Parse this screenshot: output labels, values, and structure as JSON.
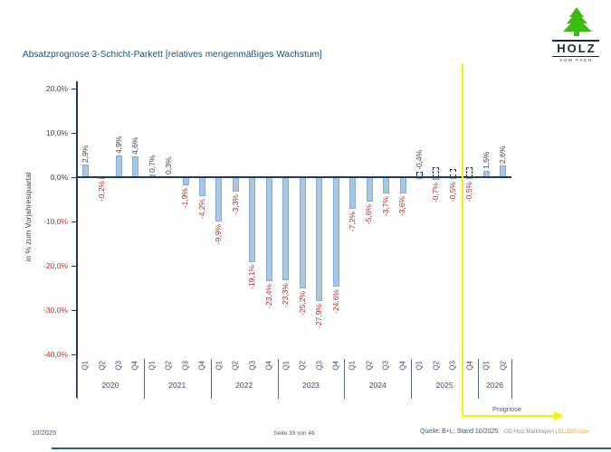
{
  "page": {
    "title": "Absatzprognose 3-Schicht-Parkett [relatives mengenmäßiges Wachstum]",
    "logo": {
      "name": "HOLZ",
      "subtitle": "VOM FACH",
      "tree_icon": "fir-tree-icon",
      "green": "#3EBB13",
      "dark": "#1D2A36"
    },
    "footer": {
      "left": "10/2025",
      "center": "Seite 39 von 46",
      "source": "Quelle: B+L; Stand 10/2025",
      "brand": "GD Holz Marktreport | ",
      "brand_link": "BL2020.com"
    }
  },
  "chart_data": {
    "type": "bar",
    "title": "Absatzprognose 3-Schicht-Parkett [relatives mengenmäßiges Wachstum]",
    "xlabel": "",
    "ylabel": "in % zum Vorjahresquartal",
    "ylim": [
      -40,
      20
    ],
    "grid": false,
    "legend": false,
    "yticks": [
      {
        "value": 20,
        "label": "20,0%"
      },
      {
        "value": 10,
        "label": "10,0%"
      },
      {
        "value": 0,
        "label": "0,0%"
      },
      {
        "value": -10,
        "label": "-10,0%"
      },
      {
        "value": -20,
        "label": "-20,0%"
      },
      {
        "value": -30,
        "label": "-30,0%"
      },
      {
        "value": -40,
        "label": "-40,0%"
      }
    ],
    "years": [
      {
        "label": "2020",
        "quarters": 4
      },
      {
        "label": "2021",
        "quarters": 4
      },
      {
        "label": "2022",
        "quarters": 4
      },
      {
        "label": "2023",
        "quarters": 4
      },
      {
        "label": "2024",
        "quarters": 4
      },
      {
        "label": "2025",
        "quarters": 4
      },
      {
        "label": "2026",
        "quarters": 2
      }
    ],
    "points": [
      {
        "year": "2020",
        "q": "Q1",
        "value": 2.9,
        "label": "2,9%"
      },
      {
        "year": "2020",
        "q": "Q2",
        "value": -0.2,
        "label": "-0,2%"
      },
      {
        "year": "2020",
        "q": "Q3",
        "value": 4.9,
        "label": "4,9%"
      },
      {
        "year": "2020",
        "q": "Q4",
        "value": 4.6,
        "label": "4,6%"
      },
      {
        "year": "2021",
        "q": "Q1",
        "value": 0.7,
        "label": "0,7%"
      },
      {
        "year": "2021",
        "q": "Q2",
        "value": 0.3,
        "label": "0,3%"
      },
      {
        "year": "2021",
        "q": "Q3",
        "value": -1.9,
        "label": "-1,9%"
      },
      {
        "year": "2021",
        "q": "Q4",
        "value": -4.2,
        "label": "-4,2%"
      },
      {
        "year": "2022",
        "q": "Q1",
        "value": -9.9,
        "label": "-9,9%"
      },
      {
        "year": "2022",
        "q": "Q2",
        "value": -3.3,
        "label": "-3,3%"
      },
      {
        "year": "2022",
        "q": "Q3",
        "value": -19.1,
        "label": "-19,1%"
      },
      {
        "year": "2022",
        "q": "Q4",
        "value": -23.4,
        "label": "-23,4%"
      },
      {
        "year": "2023",
        "q": "Q1",
        "value": -23.3,
        "label": "-23,3%"
      },
      {
        "year": "2023",
        "q": "Q2",
        "value": -25.2,
        "label": "-25,2%"
      },
      {
        "year": "2023",
        "q": "Q3",
        "value": -27.9,
        "label": "-27,9%"
      },
      {
        "year": "2023",
        "q": "Q4",
        "value": -24.6,
        "label": "-24,6%"
      },
      {
        "year": "2024",
        "q": "Q1",
        "value": -7.2,
        "label": "-7,2%"
      },
      {
        "year": "2024",
        "q": "Q2",
        "value": -5.6,
        "label": "-5,6%"
      },
      {
        "year": "2024",
        "q": "Q3",
        "value": -3.7,
        "label": "-3,7%"
      },
      {
        "year": "2024",
        "q": "Q4",
        "value": -3.6,
        "label": "-3,6%"
      },
      {
        "year": "2025",
        "q": "Q1",
        "value": -0.4,
        "label": "-0,4%",
        "outline": 1.2,
        "label_above": true
      },
      {
        "year": "2025",
        "q": "Q2",
        "value": -0.7,
        "label": "-0,7%",
        "outline": 2.2
      },
      {
        "year": "2025",
        "q": "Q3",
        "value": -0.5,
        "label": "-0,5%",
        "outline": 1.8
      },
      {
        "year": "2025",
        "q": "Q4",
        "value": -0.5,
        "label": "-0,5%",
        "outline": 2.2
      },
      {
        "year": "2026",
        "q": "Q1",
        "value": 1.5,
        "label": "1,5%"
      },
      {
        "year": "2026",
        "q": "Q2",
        "value": 2.6,
        "label": "2,6%"
      }
    ],
    "forecast": {
      "label": "Prognose",
      "starts": "2025 Q4"
    },
    "colors": {
      "bar_fill": "#A9C6E3",
      "bar_border": "#8AACCE",
      "axis": "#1F3A5F",
      "positive_label": "#3F3F3F",
      "negative_label": "#B03232",
      "category_label": "#3F4E63",
      "forecast_line": "#F8F500"
    }
  }
}
